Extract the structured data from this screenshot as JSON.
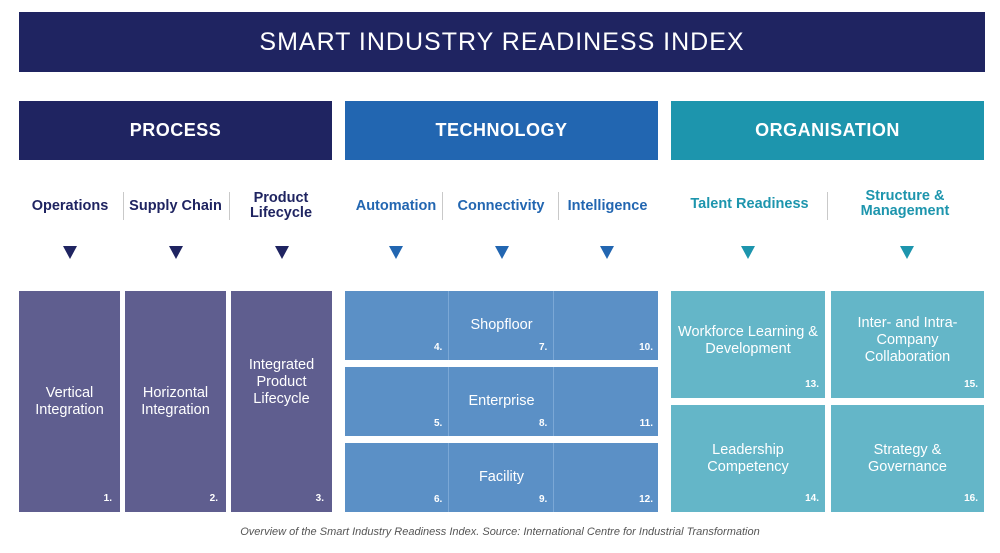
{
  "title": "SMART INDUSTRY READINESS INDEX",
  "pillars": [
    {
      "label": "PROCESS"
    },
    {
      "label": "TECHNOLOGY"
    },
    {
      "label": "ORGANISATION"
    }
  ],
  "building_blocks": [
    {
      "label": "Operations"
    },
    {
      "label": "Supply Chain"
    },
    {
      "label": "Product Lifecycle"
    },
    {
      "label": "Automation"
    },
    {
      "label": "Connectivity"
    },
    {
      "label": "Intelligence"
    },
    {
      "label": "Talent Readiness"
    },
    {
      "label": "Structure & Management"
    }
  ],
  "process_dimensions": [
    {
      "label": "Vertical Integration",
      "num": "1."
    },
    {
      "label": "Horizontal Integration",
      "num": "2."
    },
    {
      "label": "Integrated Product Lifecycle",
      "num": "3."
    }
  ],
  "technology_rows": [
    {
      "label": "Shopfloor",
      "nums": [
        "4.",
        "7.",
        "10."
      ]
    },
    {
      "label": "Enterprise",
      "nums": [
        "5.",
        "8.",
        "11."
      ]
    },
    {
      "label": "Facility",
      "nums": [
        "6.",
        "9.",
        "12."
      ]
    }
  ],
  "organisation_dimensions": [
    {
      "label": "Workforce Learning & Development",
      "num": "13."
    },
    {
      "label": "Inter- and Intra-Company Collaboration",
      "num": "15."
    },
    {
      "label": "Leadership Competency",
      "num": "14."
    },
    {
      "label": "Strategy & Governance",
      "num": "16."
    }
  ],
  "caption": "Overview of the Smart Industry Readiness Index. Source: International Centre for Industrial Transformation",
  "colors": {
    "navy": "#1f2461",
    "blue": "#2266b1",
    "teal": "#1d95ad",
    "process_box": "#5f5e8f",
    "tech_box": "#5b90c6",
    "org_box": "#64b6c8"
  }
}
